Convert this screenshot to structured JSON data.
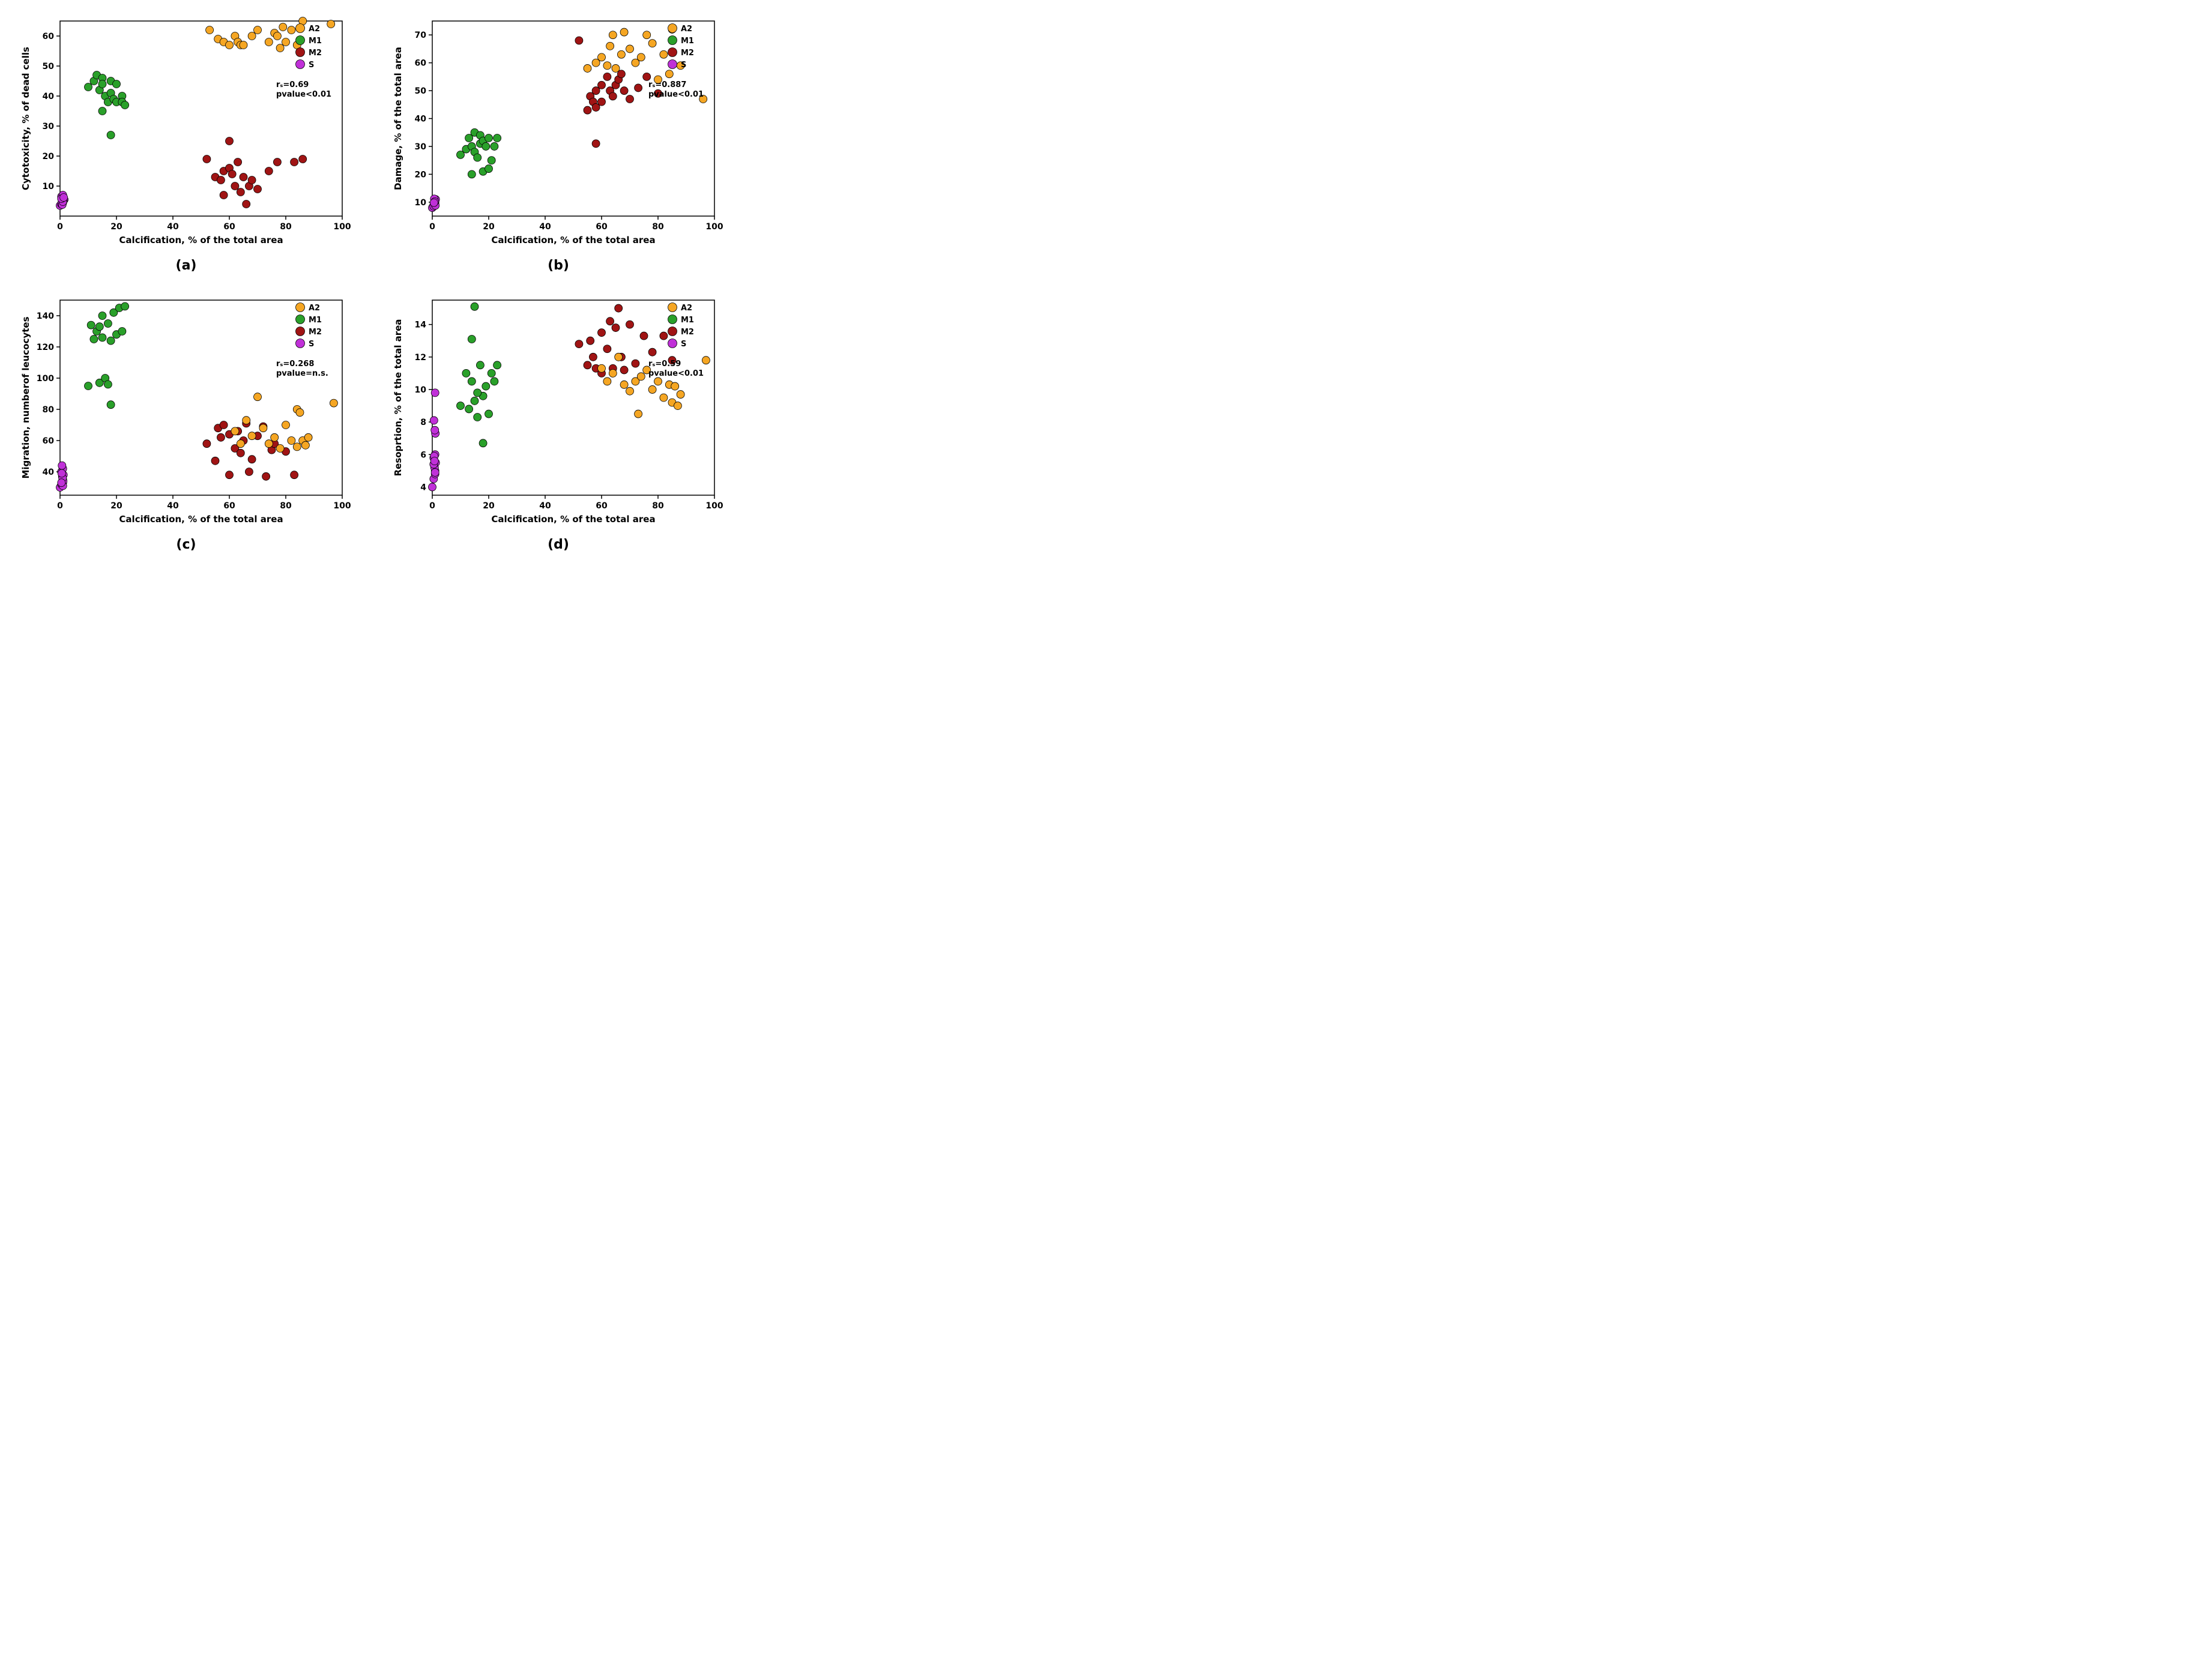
{
  "global": {
    "background_color": "#ffffff",
    "axis_color": "#000000",
    "tick_fontsize": 14,
    "axis_label_fontsize": 15,
    "legend_fontsize": 13,
    "stat_fontsize": 13,
    "panel_label_fontsize": 22,
    "font_weight": "bold",
    "marker_radius": 6.5,
    "marker_stroke": "#000000",
    "marker_stroke_width": 0.8,
    "legend_marker_radius": 7.5
  },
  "series_colors": {
    "A2": "#f5a623",
    "M1": "#2aa02a",
    "M2": "#a01414",
    "S": "#c030d8"
  },
  "legend_order": [
    "A2",
    "M1",
    "M2",
    "S"
  ],
  "panels": {
    "a": {
      "panel_label": "(a)",
      "xlabel": "Calcification, % of the total area",
      "ylabel": "Cytotoxicity, % of dead cells",
      "xlim": [
        0,
        100
      ],
      "ylim": [
        0,
        65
      ],
      "xticks": [
        0,
        20,
        40,
        60,
        80,
        100
      ],
      "yticks": [
        10,
        20,
        30,
        40,
        50,
        60
      ],
      "stats": {
        "rs_label": "rₛ=0.69",
        "p_label": "pvalue<0.01"
      },
      "data": {
        "S": [
          [
            0,
            3.5
          ],
          [
            0.5,
            4
          ],
          [
            1,
            4.5
          ],
          [
            1,
            5
          ],
          [
            1.5,
            5.5
          ],
          [
            1,
            6
          ],
          [
            0.5,
            6.5
          ],
          [
            1,
            7
          ],
          [
            0.5,
            4.2
          ],
          [
            1.2,
            5.2
          ],
          [
            0.8,
            3.8
          ],
          [
            1,
            4.8
          ],
          [
            0.5,
            5.8
          ],
          [
            1.3,
            6.2
          ]
        ],
        "M1": [
          [
            10,
            43
          ],
          [
            12,
            45
          ],
          [
            13,
            47
          ],
          [
            14,
            42
          ],
          [
            15,
            46
          ],
          [
            15,
            44
          ],
          [
            16,
            40
          ],
          [
            17,
            38
          ],
          [
            18,
            41
          ],
          [
            18,
            45
          ],
          [
            19,
            39
          ],
          [
            20,
            38
          ],
          [
            20,
            44
          ],
          [
            22,
            40
          ],
          [
            22,
            38
          ],
          [
            23,
            37
          ],
          [
            15,
            35
          ],
          [
            18,
            27
          ]
        ],
        "M2": [
          [
            52,
            19
          ],
          [
            55,
            13
          ],
          [
            57,
            12
          ],
          [
            58,
            15
          ],
          [
            58,
            7
          ],
          [
            60,
            16
          ],
          [
            60,
            25
          ],
          [
            61,
            14
          ],
          [
            62,
            10
          ],
          [
            63,
            18
          ],
          [
            64,
            8
          ],
          [
            65,
            13
          ],
          [
            66,
            4
          ],
          [
            67,
            10
          ],
          [
            68,
            12
          ],
          [
            70,
            9
          ],
          [
            74,
            15
          ],
          [
            77,
            18
          ],
          [
            83,
            18
          ],
          [
            86,
            19
          ]
        ],
        "A2": [
          [
            53,
            62
          ],
          [
            56,
            59
          ],
          [
            58,
            58
          ],
          [
            60,
            57
          ],
          [
            62,
            60
          ],
          [
            63,
            58
          ],
          [
            64,
            57
          ],
          [
            65,
            57
          ],
          [
            68,
            60
          ],
          [
            70,
            62
          ],
          [
            74,
            58
          ],
          [
            76,
            61
          ],
          [
            77,
            60
          ],
          [
            78,
            56
          ],
          [
            79,
            63
          ],
          [
            80,
            58
          ],
          [
            82,
            62
          ],
          [
            84,
            57
          ],
          [
            86,
            65
          ],
          [
            96,
            64
          ]
        ]
      }
    },
    "b": {
      "panel_label": "(b)",
      "xlabel": "Calcification, % of the total area",
      "ylabel": "Damage, % of the total area",
      "xlim": [
        0,
        100
      ],
      "ylim": [
        5,
        75
      ],
      "xticks": [
        0,
        20,
        40,
        60,
        80,
        100
      ],
      "yticks": [
        10,
        20,
        30,
        40,
        50,
        60,
        70
      ],
      "stats": {
        "rs_label": "rₛ=0.887",
        "p_label": "pvalue<0.01"
      },
      "data": {
        "S": [
          [
            0,
            8
          ],
          [
            0.5,
            9
          ],
          [
            1,
            9.5
          ],
          [
            1,
            10
          ],
          [
            0.8,
            10.5
          ],
          [
            1.2,
            11
          ],
          [
            0.5,
            8.5
          ],
          [
            1,
            9.2
          ],
          [
            0.7,
            11.2
          ],
          [
            1.1,
            8.8
          ],
          [
            0.9,
            10.2
          ],
          [
            0.6,
            9.8
          ]
        ],
        "M1": [
          [
            10,
            27
          ],
          [
            12,
            29
          ],
          [
            13,
            33
          ],
          [
            14,
            30
          ],
          [
            15,
            35
          ],
          [
            15,
            28
          ],
          [
            16,
            26
          ],
          [
            17,
            31
          ],
          [
            17,
            34
          ],
          [
            18,
            32
          ],
          [
            19,
            30
          ],
          [
            20,
            33
          ],
          [
            21,
            25
          ],
          [
            22,
            30
          ],
          [
            23,
            33
          ],
          [
            18,
            21
          ],
          [
            20,
            22
          ],
          [
            14,
            20
          ]
        ],
        "M2": [
          [
            52,
            68
          ],
          [
            55,
            43
          ],
          [
            56,
            48
          ],
          [
            57,
            46
          ],
          [
            58,
            50
          ],
          [
            58,
            44
          ],
          [
            60,
            52
          ],
          [
            60,
            46
          ],
          [
            62,
            55
          ],
          [
            63,
            50
          ],
          [
            64,
            48
          ],
          [
            65,
            52
          ],
          [
            66,
            54
          ],
          [
            67,
            56
          ],
          [
            68,
            50
          ],
          [
            70,
            47
          ],
          [
            73,
            51
          ],
          [
            76,
            55
          ],
          [
            80,
            49
          ],
          [
            58,
            31
          ]
        ],
        "A2": [
          [
            55,
            58
          ],
          [
            58,
            60
          ],
          [
            60,
            62
          ],
          [
            62,
            59
          ],
          [
            63,
            66
          ],
          [
            64,
            70
          ],
          [
            65,
            58
          ],
          [
            67,
            63
          ],
          [
            68,
            71
          ],
          [
            70,
            65
          ],
          [
            72,
            60
          ],
          [
            74,
            62
          ],
          [
            76,
            70
          ],
          [
            78,
            67
          ],
          [
            80,
            54
          ],
          [
            82,
            63
          ],
          [
            84,
            56
          ],
          [
            85,
            72
          ],
          [
            88,
            59
          ],
          [
            96,
            47
          ]
        ]
      }
    },
    "c": {
      "panel_label": "(c)",
      "xlabel": "Calcification, % of the total area",
      "ylabel": "Migration, numberof leucocytes",
      "xlim": [
        0,
        100
      ],
      "ylim": [
        25,
        150
      ],
      "xticks": [
        0,
        20,
        40,
        60,
        80,
        100
      ],
      "yticks": [
        40,
        60,
        80,
        100,
        120,
        140
      ],
      "stats": {
        "rs_label": "rₛ=0.268",
        "p_label": "pvalue=n.s."
      },
      "data": {
        "S": [
          [
            0,
            30
          ],
          [
            0.5,
            32
          ],
          [
            1,
            33
          ],
          [
            1,
            35
          ],
          [
            0.8,
            37
          ],
          [
            1.2,
            38
          ],
          [
            0.5,
            40
          ],
          [
            1,
            42
          ],
          [
            0.7,
            44
          ],
          [
            1.1,
            34
          ],
          [
            0.9,
            36
          ],
          [
            0.6,
            39
          ],
          [
            1,
            31
          ],
          [
            0.5,
            33
          ]
        ],
        "M1": [
          [
            10,
            95
          ],
          [
            11,
            134
          ],
          [
            12,
            125
          ],
          [
            13,
            130
          ],
          [
            14,
            97
          ],
          [
            15,
            126
          ],
          [
            15,
            140
          ],
          [
            16,
            100
          ],
          [
            17,
            135
          ],
          [
            17,
            96
          ],
          [
            18,
            124
          ],
          [
            19,
            142
          ],
          [
            20,
            128
          ],
          [
            21,
            145
          ],
          [
            22,
            130
          ],
          [
            23,
            146
          ],
          [
            18,
            83
          ],
          [
            14,
            133
          ]
        ],
        "M2": [
          [
            52,
            58
          ],
          [
            55,
            47
          ],
          [
            56,
            68
          ],
          [
            57,
            62
          ],
          [
            58,
            70
          ],
          [
            60,
            64
          ],
          [
            60,
            38
          ],
          [
            62,
            55
          ],
          [
            63,
            66
          ],
          [
            64,
            52
          ],
          [
            65,
            60
          ],
          [
            66,
            71
          ],
          [
            67,
            40
          ],
          [
            68,
            48
          ],
          [
            70,
            63
          ],
          [
            72,
            69
          ],
          [
            73,
            37
          ],
          [
            75,
            54
          ],
          [
            76,
            58
          ],
          [
            80,
            53
          ],
          [
            83,
            38
          ]
        ],
        "A2": [
          [
            62,
            66
          ],
          [
            64,
            58
          ],
          [
            66,
            73
          ],
          [
            68,
            63
          ],
          [
            70,
            88
          ],
          [
            72,
            68
          ],
          [
            74,
            58
          ],
          [
            76,
            62
          ],
          [
            78,
            55
          ],
          [
            80,
            70
          ],
          [
            82,
            60
          ],
          [
            84,
            80
          ],
          [
            84,
            56
          ],
          [
            85,
            78
          ],
          [
            86,
            60
          ],
          [
            87,
            57
          ],
          [
            88,
            62
          ],
          [
            97,
            84
          ]
        ]
      }
    },
    "d": {
      "panel_label": "(d)",
      "xlabel": "Calcification, % of the total area",
      "ylabel": "Resoprtion, % of the total area",
      "xlim": [
        0,
        100
      ],
      "ylim": [
        3.5,
        15.5
      ],
      "xticks": [
        0,
        20,
        40,
        60,
        80,
        100
      ],
      "yticks": [
        4,
        6,
        8,
        10,
        12,
        14
      ],
      "stats": {
        "rs_label": "rₛ=0.59",
        "p_label": "pvalue<0.01"
      },
      "data": {
        "S": [
          [
            0,
            4
          ],
          [
            0.5,
            4.5
          ],
          [
            1,
            4.8
          ],
          [
            1,
            5
          ],
          [
            0.8,
            5.2
          ],
          [
            1.2,
            5.5
          ],
          [
            0.5,
            5.8
          ],
          [
            1,
            6
          ],
          [
            0.7,
            5.9
          ],
          [
            1.1,
            7.3
          ],
          [
            0.9,
            7.5
          ],
          [
            0.6,
            8.1
          ],
          [
            1,
            9.8
          ],
          [
            0.5,
            5.4
          ],
          [
            1,
            4.9
          ],
          [
            0.8,
            5.6
          ]
        ],
        "M1": [
          [
            10,
            9
          ],
          [
            12,
            11
          ],
          [
            13,
            8.8
          ],
          [
            14,
            10.5
          ],
          [
            14,
            13.1
          ],
          [
            15,
            9.3
          ],
          [
            15,
            15.1
          ],
          [
            16,
            8.3
          ],
          [
            17,
            11.5
          ],
          [
            18,
            9.6
          ],
          [
            19,
            10.2
          ],
          [
            20,
            8.5
          ],
          [
            21,
            11
          ],
          [
            22,
            10.5
          ],
          [
            23,
            11.5
          ],
          [
            18,
            6.7
          ],
          [
            16,
            9.8
          ]
        ],
        "M2": [
          [
            52,
            12.8
          ],
          [
            55,
            11.5
          ],
          [
            56,
            13
          ],
          [
            57,
            12
          ],
          [
            58,
            11.3
          ],
          [
            60,
            13.5
          ],
          [
            60,
            11
          ],
          [
            62,
            12.5
          ],
          [
            63,
            14.2
          ],
          [
            64,
            11.3
          ],
          [
            65,
            13.8
          ],
          [
            66,
            15
          ],
          [
            67,
            12
          ],
          [
            68,
            11.2
          ],
          [
            70,
            14
          ],
          [
            72,
            11.6
          ],
          [
            75,
            13.3
          ],
          [
            78,
            12.3
          ],
          [
            82,
            13.3
          ],
          [
            85,
            11.8
          ]
        ],
        "A2": [
          [
            60,
            11.3
          ],
          [
            62,
            10.5
          ],
          [
            64,
            11
          ],
          [
            66,
            12
          ],
          [
            68,
            10.3
          ],
          [
            70,
            9.9
          ],
          [
            72,
            10.5
          ],
          [
            73,
            8.5
          ],
          [
            74,
            10.8
          ],
          [
            76,
            11.2
          ],
          [
            78,
            10
          ],
          [
            80,
            10.5
          ],
          [
            82,
            9.5
          ],
          [
            84,
            10.3
          ],
          [
            85,
            9.2
          ],
          [
            86,
            10.2
          ],
          [
            87,
            9
          ],
          [
            88,
            9.7
          ],
          [
            97,
            11.8
          ]
        ]
      }
    }
  }
}
